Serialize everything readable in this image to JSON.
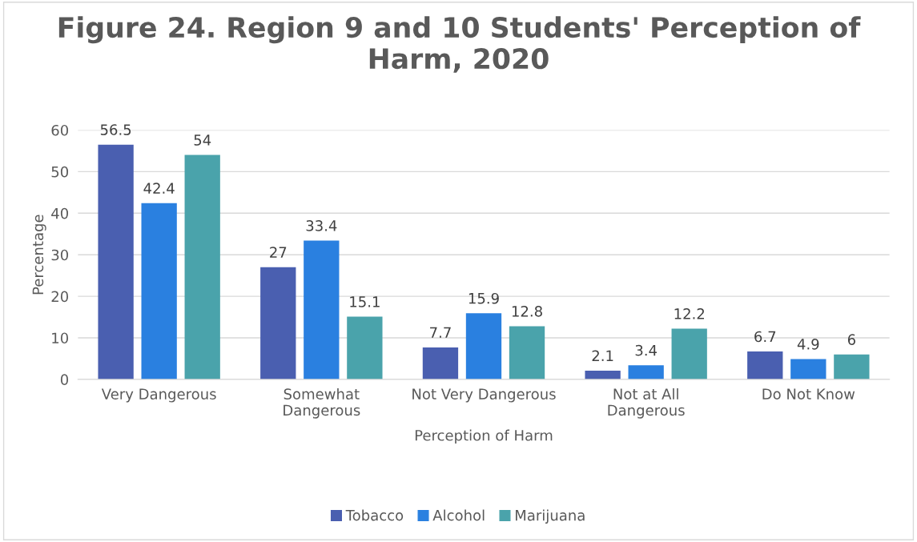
{
  "chart_data": {
    "type": "bar",
    "title": "Figure 24. Region 9 and 10 Students' Perception of\nHarm, 2020",
    "xlabel": "Perception of Harm",
    "ylabel": "Percentage",
    "categories": [
      "Very Dangerous",
      "Somewhat\nDangerous",
      "Not Very Dangerous",
      "Not at All\nDangerous",
      "Do Not Know"
    ],
    "series": [
      {
        "name": "Tobacco",
        "color": "#4a5fb0",
        "values": [
          56.5,
          27,
          7.7,
          2.1,
          6.7
        ]
      },
      {
        "name": "Alcohol",
        "color": "#2a80e0",
        "values": [
          42.4,
          33.4,
          15.9,
          3.4,
          4.9
        ]
      },
      {
        "name": "Marijuana",
        "color": "#4aa3ab",
        "values": [
          54,
          15.1,
          12.8,
          12.2,
          6
        ]
      }
    ],
    "ylim": [
      0,
      60
    ],
    "yticks": [
      0,
      10,
      20,
      30,
      40,
      50,
      60
    ],
    "grid": "y",
    "legend": "bottom",
    "data_labels": true
  }
}
